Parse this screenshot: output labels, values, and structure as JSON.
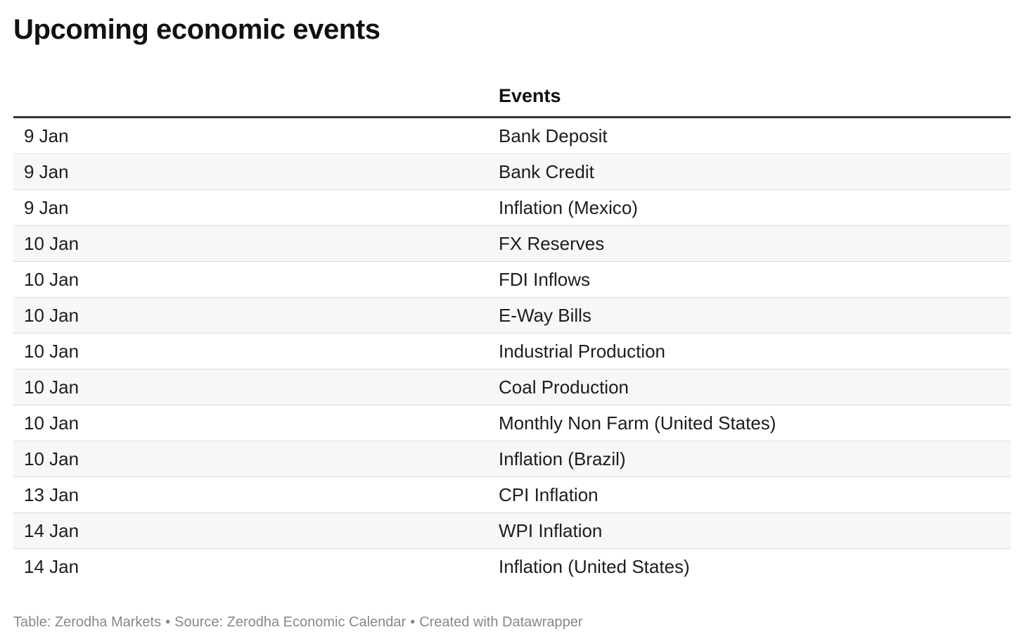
{
  "title": "Upcoming economic events",
  "table": {
    "columns": [
      "",
      "Events"
    ],
    "rows": [
      {
        "date": "9 Jan",
        "event": "Bank Deposit"
      },
      {
        "date": "9 Jan",
        "event": "Bank Credit"
      },
      {
        "date": "9 Jan",
        "event": "Inflation (Mexico)"
      },
      {
        "date": "10 Jan",
        "event": "FX Reserves"
      },
      {
        "date": "10 Jan",
        "event": "FDI Inflows"
      },
      {
        "date": "10 Jan",
        "event": "E-Way Bills"
      },
      {
        "date": "10 Jan",
        "event": "Industrial Production"
      },
      {
        "date": "10 Jan",
        "event": "Coal Production"
      },
      {
        "date": "10 Jan",
        "event": "Monthly Non Farm (United States)"
      },
      {
        "date": "10 Jan",
        "event": "Inflation (Brazil)"
      },
      {
        "date": "13 Jan",
        "event": "CPI Inflation"
      },
      {
        "date": "14 Jan",
        "event": "WPI Inflation"
      },
      {
        "date": "14 Jan",
        "event": "Inflation (United States)"
      }
    ]
  },
  "footer": {
    "table_credit": "Table: Zerodha Markets",
    "source": "Source: Zerodha Economic Calendar",
    "created_with": "Created with Datawrapper",
    "separator": "•"
  },
  "chart_data": {
    "type": "table",
    "title": "Upcoming economic events",
    "columns": [
      "",
      "Events"
    ],
    "rows": [
      [
        "9 Jan",
        "Bank Deposit"
      ],
      [
        "9 Jan",
        "Bank Credit"
      ],
      [
        "9 Jan",
        "Inflation (Mexico)"
      ],
      [
        "10 Jan",
        "FX Reserves"
      ],
      [
        "10 Jan",
        "FDI Inflows"
      ],
      [
        "10 Jan",
        "E-Way Bills"
      ],
      [
        "10 Jan",
        "Industrial Production"
      ],
      [
        "10 Jan",
        "Coal Production"
      ],
      [
        "10 Jan",
        "Monthly Non Farm (United States)"
      ],
      [
        "10 Jan",
        "Inflation (Brazil)"
      ],
      [
        "13 Jan",
        "CPI Inflation"
      ],
      [
        "14 Jan",
        "WPI Inflation"
      ],
      [
        "14 Jan",
        "Inflation (United States)"
      ]
    ]
  },
  "colors": {
    "header_rule": "#333333",
    "row_divider": "#dddddd",
    "alt_row_background": "#f7f7f7",
    "footer_text": "#888888"
  }
}
